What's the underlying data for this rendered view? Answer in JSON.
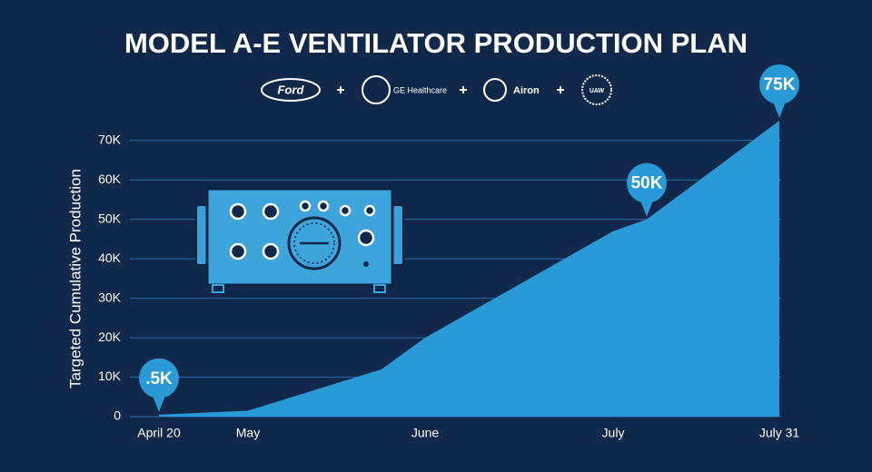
{
  "chart_data": {
    "type": "area",
    "title": "MODEL A-E VENTILATOR PRODUCTION PLAN",
    "partners": [
      "Ford",
      "GE Healthcare",
      "Airon",
      "UAW"
    ],
    "y_label": "Targeted Cumulative Production",
    "categories": [
      "April 20",
      "May",
      null,
      "June",
      "July",
      null,
      "July 31"
    ],
    "values": [
      500,
      1500,
      12000,
      20000,
      47000,
      50000,
      75000
    ],
    "value_labels": [
      ".5K",
      null,
      null,
      null,
      null,
      "50K",
      "75K"
    ],
    "color": "#2a9ad6",
    "ylim": [
      0,
      75000
    ],
    "yticks": [
      0,
      {
        "value": 10000,
        "label": "10K"
      },
      {
        "value": 20000,
        "label": "20K"
      },
      {
        "value": 30000,
        "label": "30K"
      },
      {
        "value": 40000,
        "label": "40K"
      },
      {
        "value": 50000,
        "label": "50K"
      },
      {
        "value": 60000,
        "label": "60K"
      },
      {
        "value": 70000,
        "label": "70K"
      }
    ],
    "grid": true
  }
}
